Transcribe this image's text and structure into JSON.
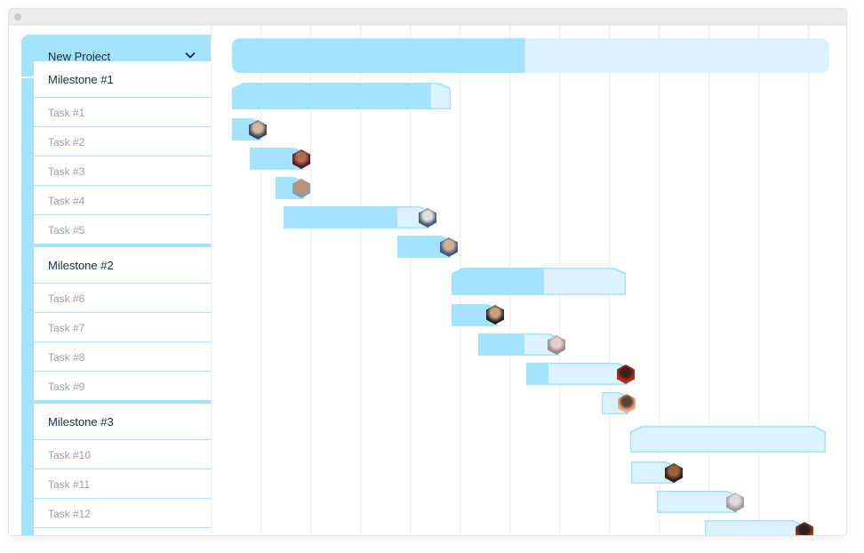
{
  "project": {
    "title": "New Project",
    "icon": "chevron-down-icon",
    "progress": 0.49
  },
  "colors": {
    "accent": "#a4e3fd",
    "accent_light": "#daf3fe",
    "grid": "#ececec",
    "text_dark": "#1d2a33",
    "text_muted": "#9aa0a4"
  },
  "milestones": [
    {
      "label": "Milestone #1",
      "progress": 0.91,
      "tasks": [
        {
          "label": "Task #1",
          "progress": 1.0
        },
        {
          "label": "Task #2",
          "progress": 1.0
        },
        {
          "label": "Task #3",
          "progress": 1.0
        },
        {
          "label": "Task #4",
          "progress": 0.78
        },
        {
          "label": "Task #5",
          "progress": 1.0
        }
      ]
    },
    {
      "label": "Milestone #2",
      "progress": 0.53,
      "tasks": [
        {
          "label": "Task #6",
          "progress": 1.0
        },
        {
          "label": "Task #7",
          "progress": 0.57
        },
        {
          "label": "Task #8",
          "progress": 0.22
        },
        {
          "label": "Task #9",
          "progress": 0.0
        }
      ]
    },
    {
      "label": "Milestone #3",
      "progress": 0.0,
      "tasks": [
        {
          "label": "Task #10",
          "progress": 0.0
        },
        {
          "label": "Task #11",
          "progress": 0.0
        },
        {
          "label": "Task #12",
          "progress": 0.0
        }
      ]
    }
  ]
}
